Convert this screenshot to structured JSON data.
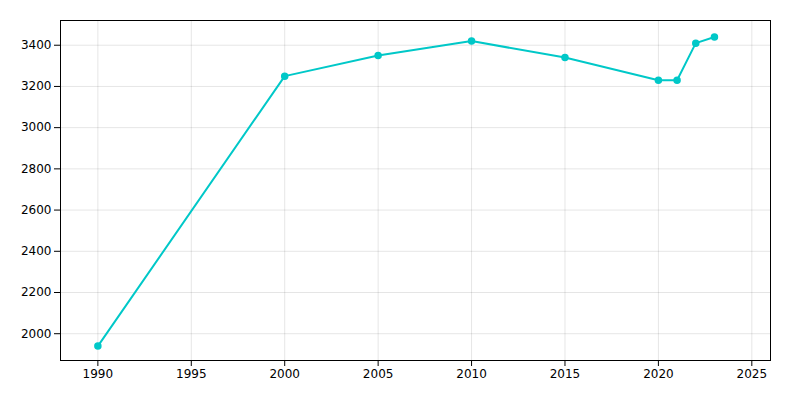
{
  "chart_data": {
    "type": "line",
    "x": [
      1990,
      2000,
      2005,
      2010,
      2015,
      2020,
      2021,
      2022,
      2023
    ],
    "values": [
      1940,
      3250,
      3350,
      3420,
      3340,
      3230,
      3230,
      3410,
      3440
    ],
    "color": "#00C8C8",
    "marker": "circle",
    "xlim": [
      1988,
      2026
    ],
    "ylim": [
      1870,
      3520
    ],
    "xticks": [
      1990,
      1995,
      2000,
      2005,
      2010,
      2015,
      2020,
      2025
    ],
    "yticks": [
      2000,
      2200,
      2400,
      2600,
      2800,
      3000,
      3200,
      3400
    ],
    "grid": true
  }
}
